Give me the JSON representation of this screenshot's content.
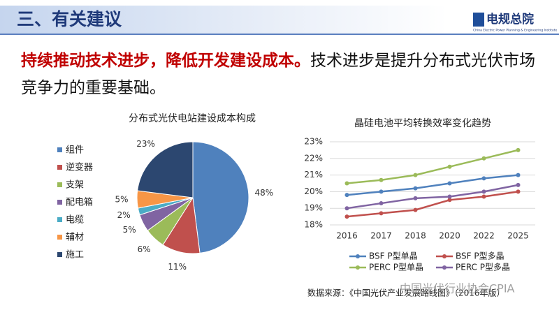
{
  "header": {
    "title": "三、有关建议",
    "logo": "电规总院",
    "logo_subtitle": "China Electric Power Planning & Engineering Institute"
  },
  "headline": {
    "emphasis": "持续推动技术进步，降低开发建设成本。",
    "text": "技术进步是提升分布式光伏市场竞争力的重要基础。"
  },
  "chart_data": [
    {
      "type": "pie",
      "title": "分布式光伏电站建设成本构成",
      "categories": [
        "组件",
        "逆变器",
        "支架",
        "配电箱",
        "电缆",
        "辅材",
        "施工"
      ],
      "values": [
        48,
        11,
        6,
        5,
        2,
        5,
        23
      ],
      "value_labels": [
        "48%",
        "11%",
        "6%",
        "5%",
        "2%",
        "5%",
        "23%"
      ],
      "colors": [
        "#4f81bd",
        "#c0504d",
        "#9bbb59",
        "#8064a2",
        "#4bacc6",
        "#f79646",
        "#2c4770"
      ],
      "legend": "left"
    },
    {
      "type": "line",
      "title": "晶硅电池平均转换效率变化趋势",
      "categories": [
        "2016",
        "2017",
        "2018",
        "2020",
        "2022",
        "2025"
      ],
      "ylim": [
        18,
        23
      ],
      "yticks": [
        {
          "value": 18,
          "label": "18%"
        },
        {
          "value": 19,
          "label": "19%"
        },
        {
          "value": 20,
          "label": "20%"
        },
        {
          "value": 21,
          "label": "21%"
        },
        {
          "value": 22,
          "label": "22%"
        },
        {
          "value": 23,
          "label": "23%"
        }
      ],
      "grid": true,
      "legend": "bottom",
      "series": [
        {
          "name": "BSF P型单晶",
          "color": "#4f81bd",
          "values": [
            19.8,
            20.0,
            20.2,
            20.5,
            20.8,
            21.0
          ]
        },
        {
          "name": "BSF P型多晶",
          "color": "#c0504d",
          "values": [
            18.5,
            18.7,
            18.9,
            19.5,
            19.7,
            20.0
          ]
        },
        {
          "name": "PERC P型单晶",
          "color": "#9bbb59",
          "values": [
            20.5,
            20.7,
            21.0,
            21.5,
            22.0,
            22.5
          ]
        },
        {
          "name": "PERC P型多晶",
          "color": "#8064a2",
          "values": [
            19.0,
            19.3,
            19.6,
            19.7,
            20.0,
            20.4
          ]
        }
      ]
    }
  ],
  "source": "数据来源：《中国光伏产业发展路线图》（2016年版）",
  "watermark": "中国光伏行业协会CPIA"
}
